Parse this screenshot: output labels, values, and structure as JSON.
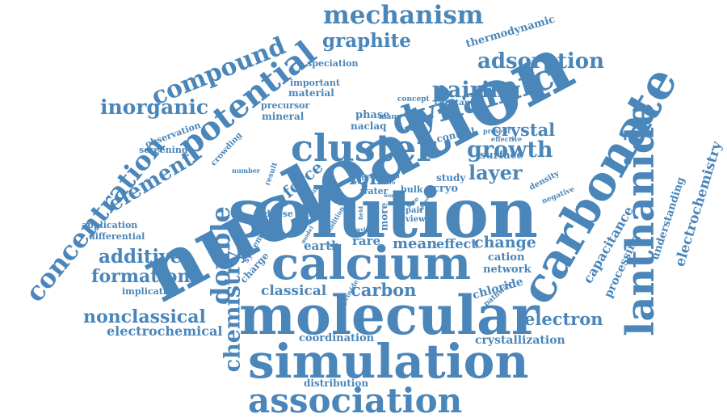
{
  "cloud": {
    "color": "#4a86b9",
    "background": "#ffffff",
    "words": [
      "nucleation",
      "solution",
      "molecular",
      "simulation",
      "calcium",
      "association",
      "carbonate",
      "lanthanide",
      "cluster",
      "dynamic",
      "potential",
      "concentration",
      "mechanism",
      "compound",
      "graphite",
      "adsorption",
      "pairing",
      "inorganic",
      "element",
      "growth",
      "crystal",
      "layer",
      "ion",
      "force",
      "double",
      "chemistry",
      "additive",
      "formation",
      "nonclassical",
      "electrochemical",
      "electron",
      "change",
      "carbon",
      "classical",
      "earth",
      "rare",
      "mean",
      "effect",
      "cation",
      "network",
      "chloride",
      "capacitance",
      "processing",
      "understanding",
      "electrochemistry",
      "coordination",
      "crystallization",
      "distribution",
      "thermodynamic",
      "speciation",
      "important",
      "material",
      "precursor",
      "mineral",
      "observation",
      "screening",
      "crowding",
      "phase",
      "naclaq",
      "control",
      "surface",
      "study",
      "cryo",
      "bulk",
      "density",
      "negative",
      "application",
      "differential",
      "implication",
      "system",
      "charge",
      "dense",
      "water",
      "more",
      "pair",
      "view",
      "pathway",
      "provide",
      "constant",
      "concept",
      "many",
      "present",
      "effective",
      "number",
      "result",
      "solvent",
      "sphere",
      "time",
      "form",
      "zero",
      "work",
      "size",
      "field",
      "acid",
      "step",
      "level",
      "model",
      "addition",
      "amino"
    ]
  }
}
